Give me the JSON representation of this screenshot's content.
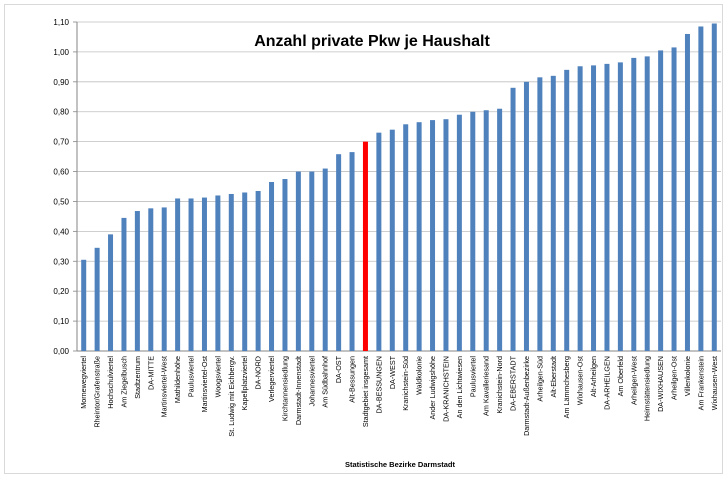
{
  "chart_data": {
    "type": "bar",
    "title": "Anzahl private Pkw je Haushalt",
    "xlabel": "Statistische Bezirke Darmstadt",
    "ylabel": "",
    "ylim": [
      0,
      1.1
    ],
    "yticks": [
      "0,00",
      "0,10",
      "0,20",
      "0,30",
      "0,40",
      "0,50",
      "0,60",
      "0,70",
      "0,80",
      "0,90",
      "1,00",
      "1,10"
    ],
    "grid": true,
    "bar_color": "#4f81bd",
    "highlight_color": "#ff0000",
    "highlight_category": "Stadtgebiet insgesamt",
    "categories": [
      "Mornewegviertel",
      "Rheintor/Grafenstraße",
      "Hochschulviertel",
      "Am Ziegelbusch",
      "Stadtzentrum",
      "DA-MITTE",
      "Martinsviertel-West",
      "Mathildenhöhe",
      "Paulusviertel",
      "Martinsviertel-Ost",
      "Woogsviertel",
      "St. Ludwig mit Eichbergv.",
      "Kapellplatzviertel",
      "DA-NORD",
      "Verlegerviertel",
      "Kirchtannensiedlung",
      "Darmstadt-Innenstadt",
      "Johannesviertel",
      "Am Südbahnhof",
      "DA-OST",
      "Alt-Bessungen",
      "Stadtgebiet insgesamt",
      "DA-BESSUNGEN",
      "DA-WEST",
      "Kranichstein-Süd",
      "Waldkolonie",
      "Ander Ludwigshöhe",
      "DA-KRANICHSTEIN",
      "An den Lichtwiesen",
      "Paulusviertel",
      "Am Kavalleriesand",
      "Kranichstein-Nord",
      "DA-EBERSTADT",
      "Darmstadt-Außenbezirke",
      "Arheilgen-Süd",
      "Alt-Eberstadt",
      "Am Lämmchesberg",
      "Wixhausen-Ost",
      "Alt-Arheilgen",
      "DA-ARHEILGEN",
      "Am Oberfeld",
      "Arheilgen-West",
      "Heimstättensiedlung",
      "DA-WIXHAUSEN",
      "Arheilgen-Ost",
      "Villenkolonie",
      "Am Frankenstein",
      "Wixhausen-West"
    ],
    "values": [
      0.305,
      0.345,
      0.39,
      0.445,
      0.468,
      0.477,
      0.48,
      0.51,
      0.51,
      0.513,
      0.52,
      0.525,
      0.53,
      0.535,
      0.565,
      0.575,
      0.6,
      0.6,
      0.61,
      0.658,
      0.665,
      0.7,
      0.73,
      0.74,
      0.758,
      0.765,
      0.772,
      0.775,
      0.79,
      0.8,
      0.805,
      0.81,
      0.88,
      0.9,
      0.915,
      0.92,
      0.94,
      0.952,
      0.955,
      0.96,
      0.965,
      0.98,
      0.985,
      1.005,
      1.015,
      1.06,
      1.085,
      1.095
    ]
  }
}
